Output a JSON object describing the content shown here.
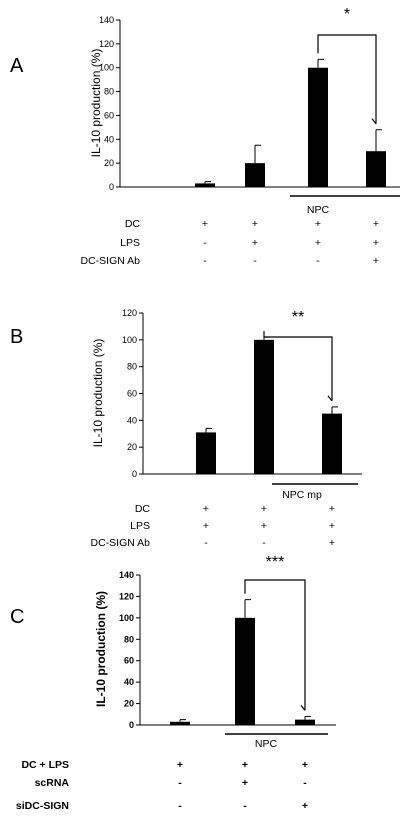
{
  "chart_data": [
    {
      "panel": "A",
      "type": "bar",
      "ylabel": "IL-10 production (%)",
      "ylim": [
        0,
        140
      ],
      "yticks": [
        "0",
        "20",
        "40",
        "60",
        "80",
        "100",
        "120",
        "140"
      ],
      "values": [
        3,
        20,
        100,
        30
      ],
      "errors": [
        1.5,
        15,
        7,
        18
      ],
      "group_label": "NPC",
      "group_range": [
        2,
        3
      ],
      "significance": {
        "between": [
          2,
          3
        ],
        "label": "*"
      },
      "conditions": [
        {
          "label": "DC",
          "marks": [
            "+",
            "+",
            "+",
            "+"
          ]
        },
        {
          "label": "LPS",
          "marks": [
            "-",
            "+",
            "+",
            "+"
          ]
        },
        {
          "label": "DC-SIGN Ab",
          "marks": [
            "-",
            "-",
            "-",
            "+"
          ]
        }
      ]
    },
    {
      "panel": "B",
      "type": "bar",
      "ylabel": "IL-10 production (%)",
      "ylim": [
        0,
        120
      ],
      "yticks": [
        "0",
        "20",
        "40",
        "60",
        "80",
        "100",
        "120"
      ],
      "values": [
        31,
        100,
        45
      ],
      "errors": [
        3,
        2,
        5
      ],
      "group_label": "NPC mp",
      "group_range": [
        1,
        2
      ],
      "significance": {
        "between": [
          1,
          2
        ],
        "label": "**"
      },
      "conditions": [
        {
          "label": "DC",
          "marks": [
            "+",
            "+",
            "+"
          ]
        },
        {
          "label": "LPS",
          "marks": [
            "+",
            "+",
            "+"
          ]
        },
        {
          "label": "DC-SIGN Ab",
          "marks": [
            "-",
            "-",
            "+"
          ]
        }
      ]
    },
    {
      "panel": "C",
      "type": "bar",
      "ylabel": "IL-10 production (%)",
      "ylim": [
        0,
        140
      ],
      "yticks": [
        "0",
        "20",
        "40",
        "60",
        "80",
        "100",
        "120",
        "140"
      ],
      "values": [
        3,
        100,
        5
      ],
      "errors": [
        2,
        17,
        3
      ],
      "group_label": "NPC",
      "group_range": [
        1,
        2
      ],
      "significance": {
        "between": [
          1,
          2
        ],
        "label": "***"
      },
      "conditions": [
        {
          "label": "DC + LPS",
          "marks": [
            "+",
            "+",
            "+"
          ]
        },
        {
          "label": "scRNA",
          "marks": [
            "-",
            "+",
            "-"
          ]
        },
        {
          "label": "siDC-SIGN",
          "marks": [
            "-",
            "-",
            "+"
          ]
        }
      ]
    }
  ]
}
